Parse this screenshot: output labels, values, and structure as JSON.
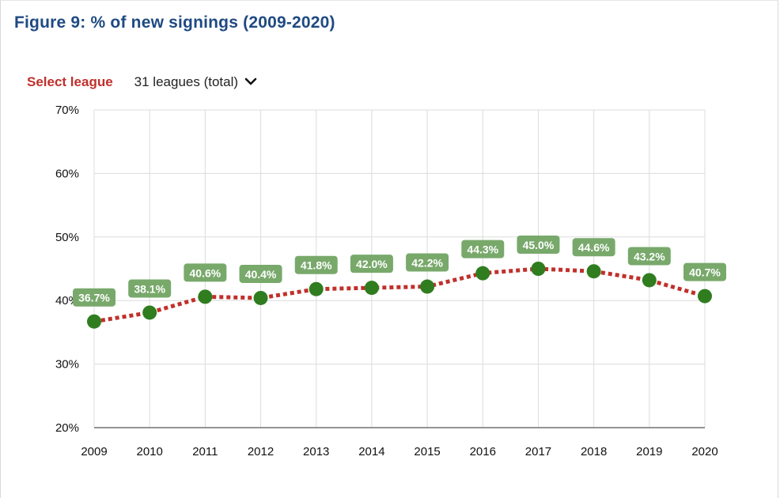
{
  "header": {
    "title": "Figure 9: % of new signings (2009-2020)"
  },
  "controls": {
    "select_label": "Select league",
    "selected_value": "31 leagues (total)",
    "dropdown_icon": "chevron-down-icon"
  },
  "colors": {
    "title": "#1f4a82",
    "select_label": "#c0302b",
    "line": "#c0302b",
    "marker": "#2f7d1f",
    "data_label_bg": "#78a96b",
    "grid": "#dcdcdc"
  },
  "chart_data": {
    "type": "line",
    "title": "",
    "xlabel": "",
    "ylabel": "",
    "categories": [
      "2009",
      "2010",
      "2011",
      "2012",
      "2013",
      "2014",
      "2015",
      "2016",
      "2017",
      "2018",
      "2019",
      "2020"
    ],
    "series": [
      {
        "values": [
          36.7,
          38.1,
          40.6,
          40.4,
          41.8,
          42.0,
          42.2,
          44.3,
          45.0,
          44.6,
          43.2,
          40.7
        ],
        "data_labels": [
          "36.7%",
          "38.1%",
          "40.6%",
          "40.4%",
          "41.8%",
          "42.0%",
          "42.2%",
          "44.3%",
          "45.0%",
          "44.6%",
          "43.2%",
          "40.7%"
        ]
      }
    ],
    "ylim": [
      20,
      70
    ],
    "yticks": [
      20,
      30,
      40,
      50,
      60,
      70
    ],
    "ytick_labels": [
      "20%",
      "30%",
      "40%",
      "50%",
      "60%",
      "70%"
    ],
    "grid": true,
    "line_style": "dotted",
    "legend": "none"
  }
}
